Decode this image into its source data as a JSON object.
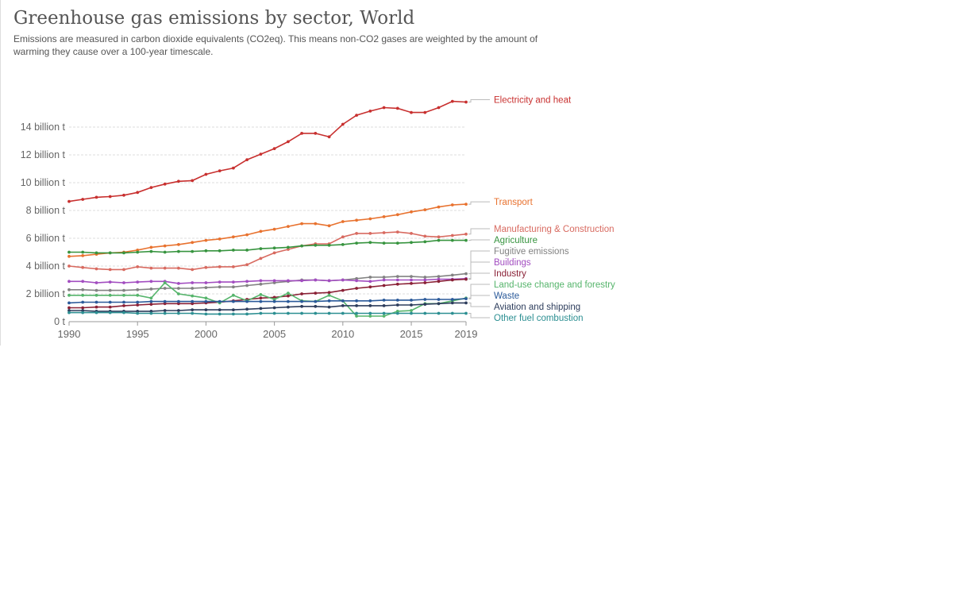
{
  "header": {
    "title": "Greenhouse gas emissions by sector, World",
    "subtitle": "Emissions are measured in carbon dioxide equivalents (CO2eq). This means non-CO2 gases are weighted by the amount of warming they cause over a 100-year timescale."
  },
  "chart_data": {
    "type": "line",
    "title": "Greenhouse gas emissions by sector, World",
    "xlim": [
      1990,
      2019
    ],
    "ylim": [
      0,
      16
    ],
    "x_ticks": [
      1990,
      1995,
      2000,
      2005,
      2010,
      2015,
      2019
    ],
    "y_ticks": [
      0,
      2,
      4,
      6,
      8,
      10,
      12,
      14
    ],
    "y_tick_labels": [
      "0 t",
      "2 billion t",
      "4 billion t",
      "6 billion t",
      "8 billion t",
      "10 billion t",
      "12 billion t",
      "14 billion t"
    ],
    "grid": "horizontal dashed",
    "legend": "right, labels at line ends",
    "x": [
      1990,
      1991,
      1992,
      1993,
      1994,
      1995,
      1996,
      1997,
      1998,
      1999,
      2000,
      2001,
      2002,
      2003,
      2004,
      2005,
      2006,
      2007,
      2008,
      2009,
      2010,
      2011,
      2012,
      2013,
      2014,
      2015,
      2016,
      2017,
      2018,
      2019
    ],
    "series": [
      {
        "name": "Electricity and heat",
        "color": "#c8302f",
        "values": [
          8.65,
          8.8,
          8.95,
          9.0,
          9.1,
          9.3,
          9.65,
          9.9,
          10.1,
          10.15,
          10.6,
          10.85,
          11.05,
          11.65,
          12.05,
          12.45,
          12.95,
          13.55,
          13.55,
          13.3,
          14.2,
          14.85,
          15.15,
          15.4,
          15.35,
          15.05,
          15.05,
          15.4,
          15.85,
          15.8
        ]
      },
      {
        "name": "Transport",
        "color": "#e8722f",
        "values": [
          4.7,
          4.75,
          4.85,
          4.95,
          5.0,
          5.15,
          5.35,
          5.45,
          5.55,
          5.7,
          5.85,
          5.95,
          6.1,
          6.25,
          6.5,
          6.65,
          6.85,
          7.05,
          7.05,
          6.9,
          7.2,
          7.3,
          7.4,
          7.55,
          7.7,
          7.9,
          8.05,
          8.25,
          8.4,
          8.45
        ]
      },
      {
        "name": "Manufacturing & Construction",
        "color": "#d86a60",
        "values": [
          4.0,
          3.9,
          3.8,
          3.75,
          3.75,
          3.95,
          3.85,
          3.85,
          3.85,
          3.75,
          3.9,
          3.95,
          3.95,
          4.1,
          4.55,
          4.95,
          5.2,
          5.45,
          5.6,
          5.6,
          6.1,
          6.35,
          6.35,
          6.4,
          6.45,
          6.35,
          6.15,
          6.1,
          6.2,
          6.3
        ]
      },
      {
        "name": "Agriculture",
        "color": "#37943f",
        "values": [
          5.0,
          5.0,
          4.95,
          4.95,
          4.95,
          5.0,
          5.05,
          5.0,
          5.05,
          5.05,
          5.1,
          5.1,
          5.15,
          5.15,
          5.25,
          5.3,
          5.35,
          5.45,
          5.5,
          5.5,
          5.55,
          5.65,
          5.7,
          5.65,
          5.65,
          5.7,
          5.75,
          5.85,
          5.85,
          5.85
        ]
      },
      {
        "name": "Fugitive emissions",
        "color": "#828282",
        "values": [
          2.3,
          2.3,
          2.25,
          2.25,
          2.25,
          2.3,
          2.35,
          2.4,
          2.4,
          2.4,
          2.45,
          2.5,
          2.5,
          2.6,
          2.7,
          2.8,
          2.9,
          3.0,
          3.0,
          2.95,
          3.0,
          3.1,
          3.2,
          3.2,
          3.25,
          3.25,
          3.2,
          3.25,
          3.35,
          3.45
        ]
      },
      {
        "name": "Buildings",
        "color": "#a24dc0",
        "values": [
          2.9,
          2.9,
          2.8,
          2.85,
          2.8,
          2.85,
          2.9,
          2.9,
          2.75,
          2.8,
          2.8,
          2.85,
          2.85,
          2.9,
          2.95,
          2.95,
          2.95,
          2.95,
          3.0,
          2.95,
          3.0,
          2.95,
          2.9,
          3.0,
          3.0,
          3.0,
          3.0,
          3.05,
          3.05,
          3.1
        ]
      },
      {
        "name": "Industry",
        "color": "#8a2136",
        "values": [
          1.0,
          1.0,
          1.05,
          1.05,
          1.15,
          1.2,
          1.25,
          1.3,
          1.3,
          1.3,
          1.35,
          1.4,
          1.5,
          1.6,
          1.7,
          1.75,
          1.85,
          2.0,
          2.05,
          2.1,
          2.25,
          2.4,
          2.5,
          2.6,
          2.7,
          2.75,
          2.8,
          2.9,
          3.0,
          3.05
        ]
      },
      {
        "name": "Land-use change and forestry",
        "color": "#55b46b",
        "values": [
          1.9,
          1.9,
          1.9,
          1.9,
          1.9,
          1.9,
          1.7,
          2.8,
          2.0,
          1.85,
          1.7,
          1.35,
          1.9,
          1.5,
          1.95,
          1.6,
          2.05,
          1.5,
          1.45,
          1.9,
          1.5,
          0.4,
          0.4,
          0.4,
          0.75,
          0.8,
          1.3,
          1.3,
          1.5,
          1.7
        ]
      },
      {
        "name": "Waste",
        "color": "#2b5a9a",
        "values": [
          1.35,
          1.4,
          1.4,
          1.4,
          1.4,
          1.4,
          1.45,
          1.45,
          1.45,
          1.45,
          1.45,
          1.45,
          1.45,
          1.45,
          1.45,
          1.45,
          1.45,
          1.45,
          1.45,
          1.5,
          1.5,
          1.5,
          1.5,
          1.55,
          1.55,
          1.55,
          1.6,
          1.6,
          1.6,
          1.65
        ]
      },
      {
        "name": "Aviation and shipping",
        "color": "#2d3d5c",
        "values": [
          0.8,
          0.8,
          0.75,
          0.75,
          0.75,
          0.75,
          0.75,
          0.8,
          0.8,
          0.85,
          0.85,
          0.85,
          0.85,
          0.9,
          0.95,
          1.0,
          1.05,
          1.1,
          1.1,
          1.05,
          1.15,
          1.15,
          1.15,
          1.15,
          1.2,
          1.2,
          1.25,
          1.3,
          1.35,
          1.35
        ]
      },
      {
        "name": "Other fuel combustion",
        "color": "#2c8f92",
        "values": [
          0.65,
          0.65,
          0.65,
          0.65,
          0.65,
          0.6,
          0.6,
          0.6,
          0.6,
          0.6,
          0.55,
          0.55,
          0.55,
          0.55,
          0.6,
          0.6,
          0.6,
          0.6,
          0.6,
          0.6,
          0.6,
          0.6,
          0.6,
          0.6,
          0.6,
          0.6,
          0.6,
          0.6,
          0.6,
          0.6
        ]
      }
    ]
  }
}
